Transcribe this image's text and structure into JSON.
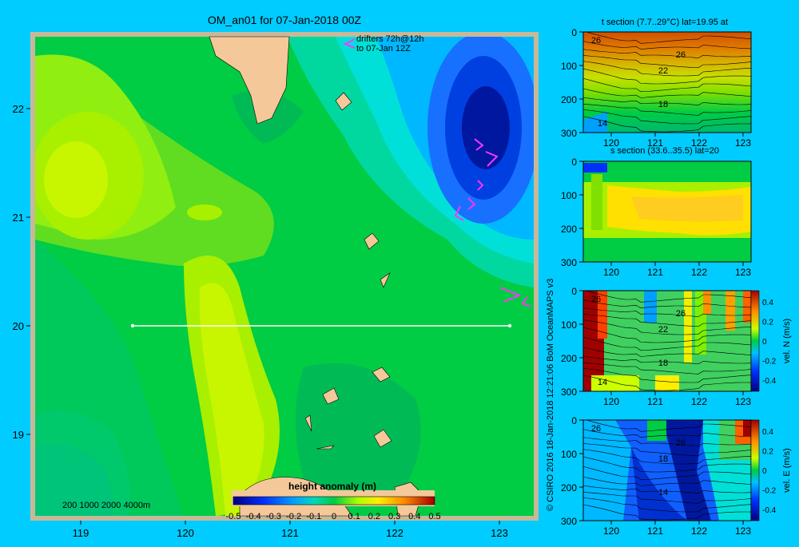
{
  "colors": {
    "background": "#00ccff",
    "map_frame": "#c8b89a",
    "land": "#f5c89a",
    "drifter": "#ff33ff",
    "section_line": "#ffffff"
  },
  "map": {
    "title": "OM_an01 for 07-Jan-2018 00Z",
    "drifter_note_line1": "drifters 72h@12h",
    "drifter_note_line2": "to 07-Jan 12Z",
    "x_ticks": [
      "119",
      "120",
      "121",
      "122",
      "123"
    ],
    "y_ticks": [
      "22",
      "21",
      "20",
      "19"
    ],
    "depth_legend": "200  1000  2000  4000m",
    "colorbar_title": "height anomaly (m)",
    "colorbar_ticks": [
      "-0.5",
      "-0.4",
      "-0.3",
      "-0.2",
      "-0.1",
      "0",
      "0.1",
      "0.2",
      "0.3",
      "0.4",
      "0.5"
    ]
  },
  "credit": "© CSIRO 2016   18-Jan-2018 12:21:06 BoM OceanMAPS v3",
  "panels": [
    {
      "title": "t section (7.7..29°C) lat=19.95 at",
      "x_ticks": [
        "120",
        "121",
        "122",
        "123"
      ],
      "y_ticks": [
        "0",
        "100",
        "200",
        "300"
      ],
      "contour_labels": [
        "26",
        "26",
        "22",
        "18",
        "14"
      ]
    },
    {
      "title": "s section (33.6..35.5) lat=20",
      "x_ticks": [
        "120",
        "121",
        "122",
        "123"
      ],
      "y_ticks": [
        "0",
        "100",
        "200",
        "300"
      ]
    },
    {
      "title": "",
      "x_ticks": [
        "120",
        "121",
        "122",
        "123"
      ],
      "y_ticks": [
        "0",
        "100",
        "200",
        "300"
      ],
      "contour_labels": [
        "26",
        "26",
        "22",
        "18",
        "14"
      ],
      "cbar_label": "vel. N (m/s)",
      "cbar_ticks": [
        "0.4",
        "0.2",
        "0",
        "-0.2",
        "-0.4"
      ]
    },
    {
      "title": "",
      "x_ticks": [
        "120",
        "121",
        "122",
        "123"
      ],
      "y_ticks": [
        "0",
        "100",
        "200",
        "300"
      ],
      "contour_labels": [
        "26",
        "26",
        "18",
        "14"
      ],
      "cbar_label": "vel. E (m/s)",
      "cbar_ticks": [
        "0.4",
        "0.2",
        "0",
        "-0.2",
        "-0.4"
      ]
    }
  ],
  "chart_data": [
    {
      "type": "heatmap",
      "title": "OM_an01 for 07-Jan-2018 00Z",
      "variable": "height anomaly (m)",
      "xlim": [
        118.5,
        123.5
      ],
      "ylim": [
        18.3,
        22.7
      ],
      "color_range": [
        -0.5,
        0.5
      ],
      "section_line": {
        "lon": [
          119.5,
          123.2
        ],
        "lat": [
          20,
          20
        ]
      },
      "features": [
        {
          "feature": "low (blue eddy)",
          "lon": 122.9,
          "lat": 21.8,
          "value": -0.3
        },
        {
          "feature": "high (yellow-green)",
          "lon": 118.8,
          "lat": 21.3,
          "value": 0.1
        },
        {
          "feature": "high ridge",
          "lon": 120.6,
          "lat": 19.5,
          "value": 0.08
        }
      ]
    },
    {
      "type": "heatmap",
      "title": "t section (7.7..29°C) lat=19.95 at",
      "xlim": [
        119.5,
        123.2
      ],
      "ylim": [
        300,
        0
      ],
      "contour_levels": [
        26,
        22,
        18,
        14
      ]
    },
    {
      "type": "heatmap",
      "title": "s section (33.6..35.5) lat=20",
      "xlim": [
        119.5,
        123.2
      ],
      "ylim": [
        300,
        0
      ]
    },
    {
      "type": "heatmap",
      "variable": "vel. N (m/s)",
      "xlim": [
        119.5,
        123.2
      ],
      "ylim": [
        300,
        0
      ],
      "color_range": [
        -0.4,
        0.4
      ]
    },
    {
      "type": "heatmap",
      "variable": "vel. E (m/s)",
      "xlim": [
        119.5,
        123.2
      ],
      "ylim": [
        300,
        0
      ],
      "color_range": [
        -0.4,
        0.4
      ]
    }
  ]
}
